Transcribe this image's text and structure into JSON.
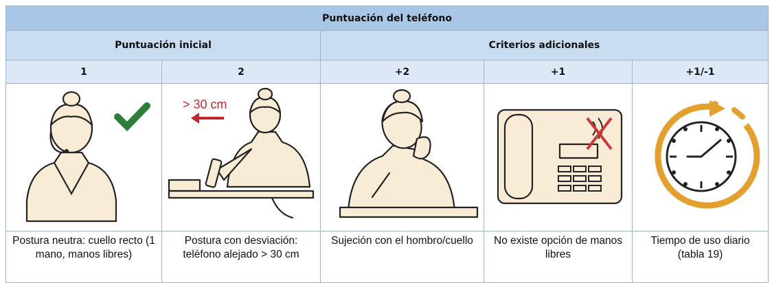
{
  "table": {
    "title": "Puntuación del teléfono",
    "groups": [
      "Puntuación inicial",
      "Criterios adicionales"
    ],
    "scores": [
      "1",
      "2",
      "+2",
      "+1",
      "+1/-1"
    ],
    "descriptions": [
      "Postura neutra: cuello recto (1 mano, manos libres)",
      "Postura con desviación: teléfono alejado > 30 cm",
      "Sujeción con el hombro/cuello",
      "No existe opción de manos libres",
      "Tiempo de uso diario (tabla 19)"
    ],
    "distance_label": "> 30 cm"
  }
}
